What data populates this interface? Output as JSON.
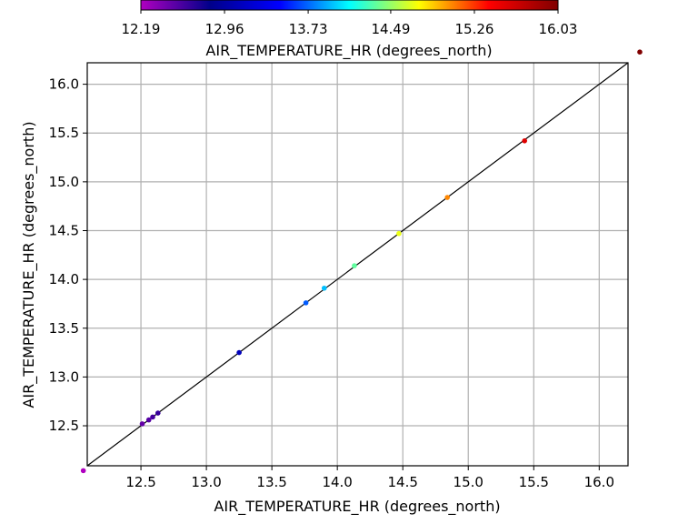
{
  "chart_data": {
    "type": "scatter",
    "title": "",
    "xlabel": "AIR_TEMPERATURE_HR (degrees_north)",
    "ylabel": "AIR_TEMPERATURE_HR (degrees_north)",
    "xlim": [
      12.09,
      16.22
    ],
    "ylim": [
      12.09,
      16.22
    ],
    "xticks": [
      12.5,
      13.0,
      13.5,
      14.0,
      14.5,
      15.0,
      15.5,
      16.0
    ],
    "xtick_labels": [
      "12.5",
      "13.0",
      "13.5",
      "14.0",
      "14.5",
      "15.0",
      "15.5",
      "16.0"
    ],
    "yticks": [
      12.5,
      13.0,
      13.5,
      14.0,
      14.5,
      15.0,
      15.5,
      16.0
    ],
    "ytick_labels": [
      "12.5",
      "13.0",
      "13.5",
      "14.0",
      "14.5",
      "15.0",
      "15.5",
      "16.0"
    ],
    "grid": true,
    "identity_line": true,
    "colorbar": {
      "label": "AIR_TEMPERATURE_HR (degrees_north)",
      "min": 12.19,
      "max": 16.03,
      "ticks": [
        12.19,
        12.96,
        13.73,
        14.49,
        15.26,
        16.03
      ],
      "tick_labels": [
        "12.19",
        "12.96",
        "13.73",
        "14.49",
        "15.26",
        "16.03"
      ],
      "placement": "top",
      "colormap": [
        "#b000c0",
        "#00008a",
        "#0000ff",
        "#00ffff",
        "#ffff00",
        "#ff0000",
        "#800000"
      ]
    },
    "points": [
      {
        "x": 12.06,
        "y": 12.04,
        "value": 12.19
      },
      {
        "x": 12.51,
        "y": 12.52,
        "value": 12.47
      },
      {
        "x": 12.56,
        "y": 12.56,
        "value": 12.52
      },
      {
        "x": 12.59,
        "y": 12.59,
        "value": 12.58
      },
      {
        "x": 12.63,
        "y": 12.63,
        "value": 12.63
      },
      {
        "x": 13.25,
        "y": 13.25,
        "value": 13.1
      },
      {
        "x": 13.76,
        "y": 13.76,
        "value": 13.7
      },
      {
        "x": 13.9,
        "y": 13.91,
        "value": 13.95
      },
      {
        "x": 14.13,
        "y": 14.14,
        "value": 14.35
      },
      {
        "x": 14.47,
        "y": 14.47,
        "value": 14.7
      },
      {
        "x": 14.84,
        "y": 14.84,
        "value": 15.05
      },
      {
        "x": 15.43,
        "y": 15.42,
        "value": 15.55
      },
      {
        "x": 16.31,
        "y": 16.33,
        "value": 16.03
      }
    ]
  }
}
